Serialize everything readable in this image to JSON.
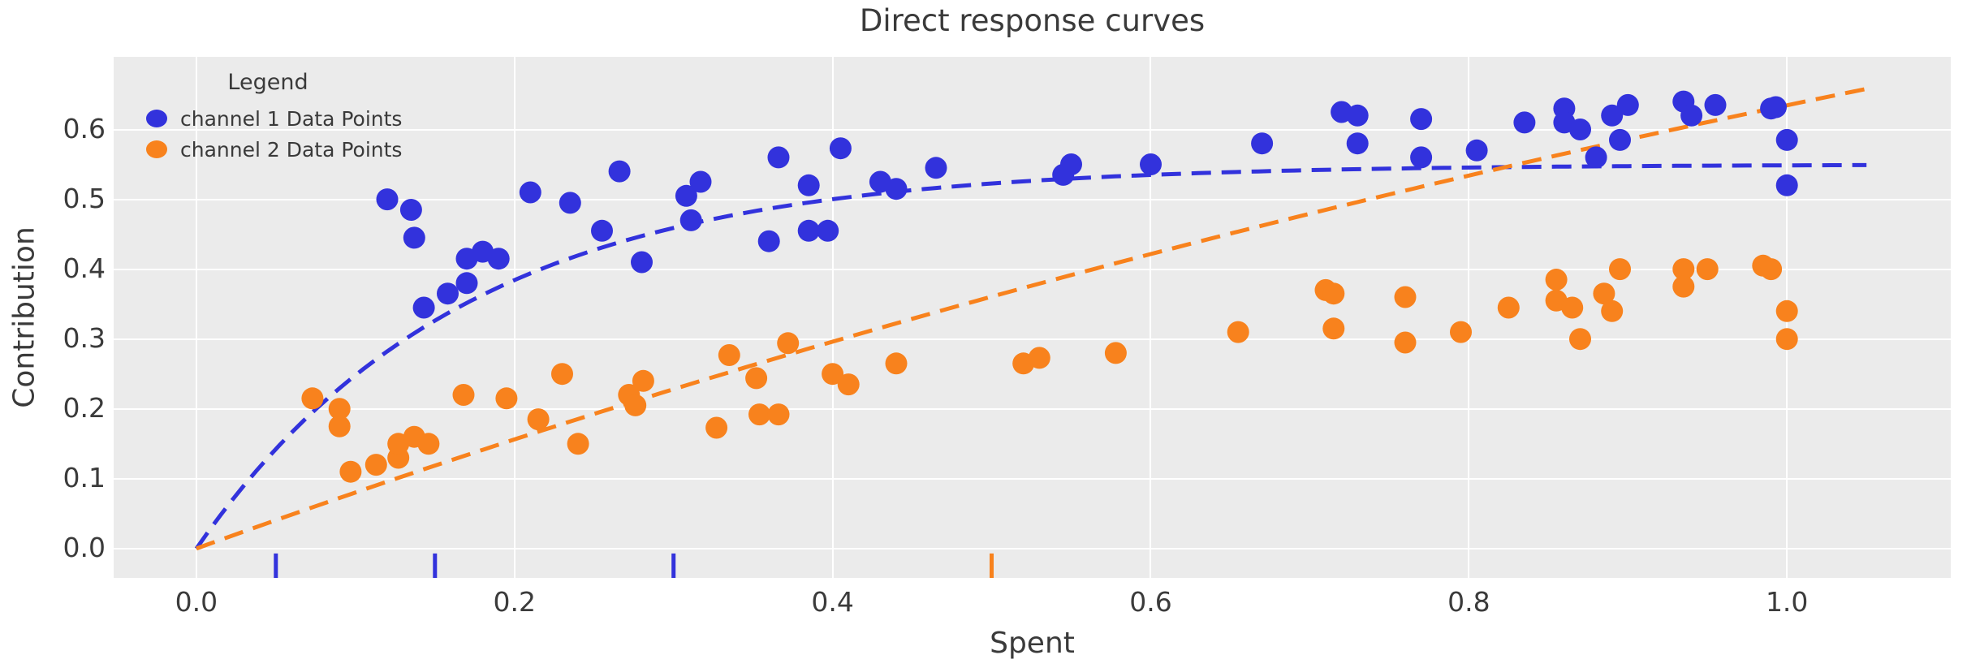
{
  "title": "Direct response curves",
  "colors": {
    "channel1": "#3232dc",
    "channel2": "#f8821d",
    "plot_background": "#ebebeb",
    "gridline": "#ffffff",
    "text": "#3a3a3a"
  },
  "legend": {
    "title": "Legend",
    "entries": [
      {
        "label": "channel 1 Data Points",
        "color": "#3232dc"
      },
      {
        "label": "channel 2 Data Points",
        "color": "#f8821d"
      }
    ]
  },
  "chart_data": {
    "type": "scatter",
    "title": "Direct response curves",
    "xlabel": "Spent",
    "ylabel": "Contribution",
    "xlim": [
      -0.052,
      1.103
    ],
    "ylim": [
      -0.042,
      0.704
    ],
    "x_ticks": [
      0.0,
      0.2,
      0.4,
      0.6,
      0.8,
      1.0
    ],
    "y_ticks": [
      0.0,
      0.1,
      0.2,
      0.3,
      0.4,
      0.5,
      0.6
    ],
    "grid": true,
    "legend_position": "upper left",
    "series": [
      {
        "name": "channel 1 Data Points",
        "color": "#3232dc",
        "points": [
          [
            0.12,
            0.5
          ],
          [
            0.135,
            0.485
          ],
          [
            0.137,
            0.445
          ],
          [
            0.143,
            0.345
          ],
          [
            0.158,
            0.365
          ],
          [
            0.17,
            0.38
          ],
          [
            0.17,
            0.415
          ],
          [
            0.18,
            0.425
          ],
          [
            0.19,
            0.415
          ],
          [
            0.21,
            0.51
          ],
          [
            0.235,
            0.495
          ],
          [
            0.255,
            0.455
          ],
          [
            0.266,
            0.54
          ],
          [
            0.28,
            0.41
          ],
          [
            0.308,
            0.505
          ],
          [
            0.317,
            0.525
          ],
          [
            0.311,
            0.47
          ],
          [
            0.36,
            0.44
          ],
          [
            0.366,
            0.56
          ],
          [
            0.385,
            0.52
          ],
          [
            0.385,
            0.455
          ],
          [
            0.397,
            0.455
          ],
          [
            0.405,
            0.573
          ],
          [
            0.43,
            0.525
          ],
          [
            0.44,
            0.515
          ],
          [
            0.465,
            0.545
          ],
          [
            0.545,
            0.535
          ],
          [
            0.55,
            0.55
          ],
          [
            0.6,
            0.55
          ],
          [
            0.67,
            0.58
          ],
          [
            0.72,
            0.625
          ],
          [
            0.73,
            0.62
          ],
          [
            0.73,
            0.58
          ],
          [
            0.77,
            0.615
          ],
          [
            0.77,
            0.56
          ],
          [
            0.805,
            0.57
          ],
          [
            0.835,
            0.61
          ],
          [
            0.86,
            0.63
          ],
          [
            0.86,
            0.61
          ],
          [
            0.87,
            0.6
          ],
          [
            0.88,
            0.56
          ],
          [
            0.89,
            0.62
          ],
          [
            0.895,
            0.585
          ],
          [
            0.9,
            0.635
          ],
          [
            0.935,
            0.64
          ],
          [
            0.94,
            0.62
          ],
          [
            0.955,
            0.635
          ],
          [
            0.99,
            0.63
          ],
          [
            0.993,
            0.632
          ],
          [
            1.0,
            0.585
          ],
          [
            1.0,
            0.52
          ]
        ]
      },
      {
        "name": "channel 2 Data Points",
        "color": "#f8821d",
        "points": [
          [
            0.073,
            0.215
          ],
          [
            0.09,
            0.2
          ],
          [
            0.09,
            0.175
          ],
          [
            0.097,
            0.11
          ],
          [
            0.113,
            0.12
          ],
          [
            0.127,
            0.13
          ],
          [
            0.127,
            0.15
          ],
          [
            0.137,
            0.16
          ],
          [
            0.146,
            0.15
          ],
          [
            0.168,
            0.22
          ],
          [
            0.195,
            0.215
          ],
          [
            0.215,
            0.185
          ],
          [
            0.23,
            0.25
          ],
          [
            0.24,
            0.15
          ],
          [
            0.272,
            0.22
          ],
          [
            0.276,
            0.205
          ],
          [
            0.281,
            0.24
          ],
          [
            0.327,
            0.173
          ],
          [
            0.335,
            0.277
          ],
          [
            0.352,
            0.244
          ],
          [
            0.354,
            0.192
          ],
          [
            0.366,
            0.192
          ],
          [
            0.372,
            0.294
          ],
          [
            0.4,
            0.25
          ],
          [
            0.41,
            0.235
          ],
          [
            0.44,
            0.265
          ],
          [
            0.52,
            0.265
          ],
          [
            0.53,
            0.273
          ],
          [
            0.578,
            0.28
          ],
          [
            0.655,
            0.31
          ],
          [
            0.71,
            0.37
          ],
          [
            0.715,
            0.365
          ],
          [
            0.715,
            0.315
          ],
          [
            0.76,
            0.36
          ],
          [
            0.76,
            0.295
          ],
          [
            0.795,
            0.31
          ],
          [
            0.825,
            0.345
          ],
          [
            0.855,
            0.385
          ],
          [
            0.855,
            0.355
          ],
          [
            0.865,
            0.345
          ],
          [
            0.87,
            0.3
          ],
          [
            0.885,
            0.365
          ],
          [
            0.89,
            0.34
          ],
          [
            0.895,
            0.4
          ],
          [
            0.935,
            0.4
          ],
          [
            0.935,
            0.375
          ],
          [
            0.95,
            0.4
          ],
          [
            0.985,
            0.405
          ],
          [
            0.99,
            0.4
          ],
          [
            1.0,
            0.34
          ],
          [
            1.0,
            0.3
          ]
        ]
      }
    ],
    "fitted_curves": [
      {
        "name": "channel 1 response curve",
        "color": "#3232dc",
        "style": "dashed",
        "model": "saturation",
        "scale": 0.55,
        "rate": 6.0,
        "x_range": [
          0.0,
          1.05
        ]
      },
      {
        "name": "channel 2 response curve",
        "color": "#f8821d",
        "style": "dashed",
        "model": "saturation",
        "scale": 1.5,
        "rate": 0.55,
        "x_range": [
          0.0,
          1.05
        ]
      }
    ],
    "rug_marks": [
      {
        "series": "channel 1",
        "color": "#3232dc",
        "x_values": [
          0.05,
          0.15,
          0.3
        ]
      },
      {
        "series": "channel 2",
        "color": "#f8821d",
        "x_values": [
          0.5
        ]
      }
    ]
  }
}
